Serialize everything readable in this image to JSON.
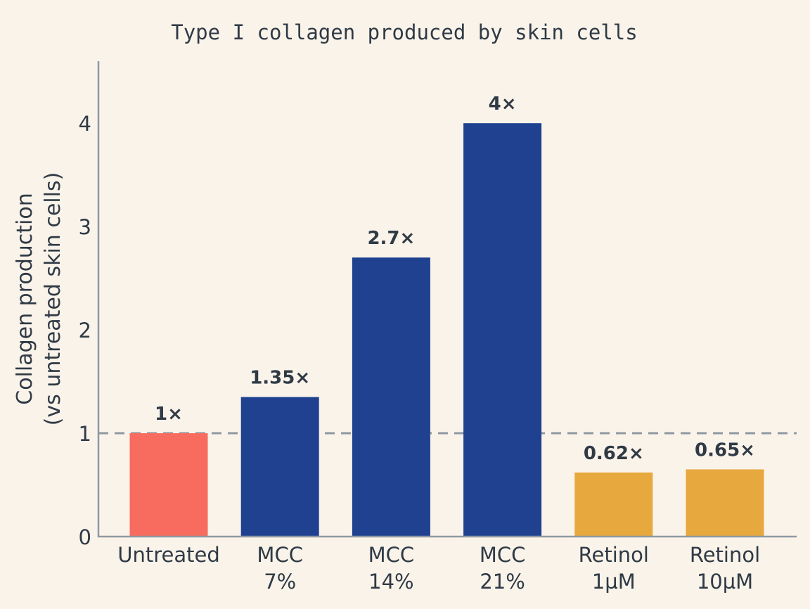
{
  "chart_data": {
    "type": "bar",
    "title": "Type I collagen produced by skin cells",
    "xlabel": "",
    "ylabel_lines": [
      "Collagen production",
      "(vs untreated skin cells)"
    ],
    "ylim": [
      0,
      4.6
    ],
    "yticks": [
      0,
      1,
      2,
      3,
      4
    ],
    "reference_line": 1,
    "grid": false,
    "categories": [
      [
        "Untreated"
      ],
      [
        "MCC",
        "7%"
      ],
      [
        "MCC",
        "14%"
      ],
      [
        "MCC",
        "21%"
      ],
      [
        "Retinol",
        "1µM"
      ],
      [
        "Retinol",
        "10µM"
      ]
    ],
    "values": [
      1,
      1.35,
      2.7,
      4,
      0.62,
      0.65
    ],
    "data_labels": [
      "1×",
      "1.35×",
      "2.7×",
      "4×",
      "0.62×",
      "0.65×"
    ],
    "colors": [
      "#f76c5e",
      "#1f418f",
      "#1f418f",
      "#1f418f",
      "#e7a83d",
      "#e7a83d"
    ],
    "background": "#faf3ea",
    "axis_color": "#8f99a1"
  }
}
